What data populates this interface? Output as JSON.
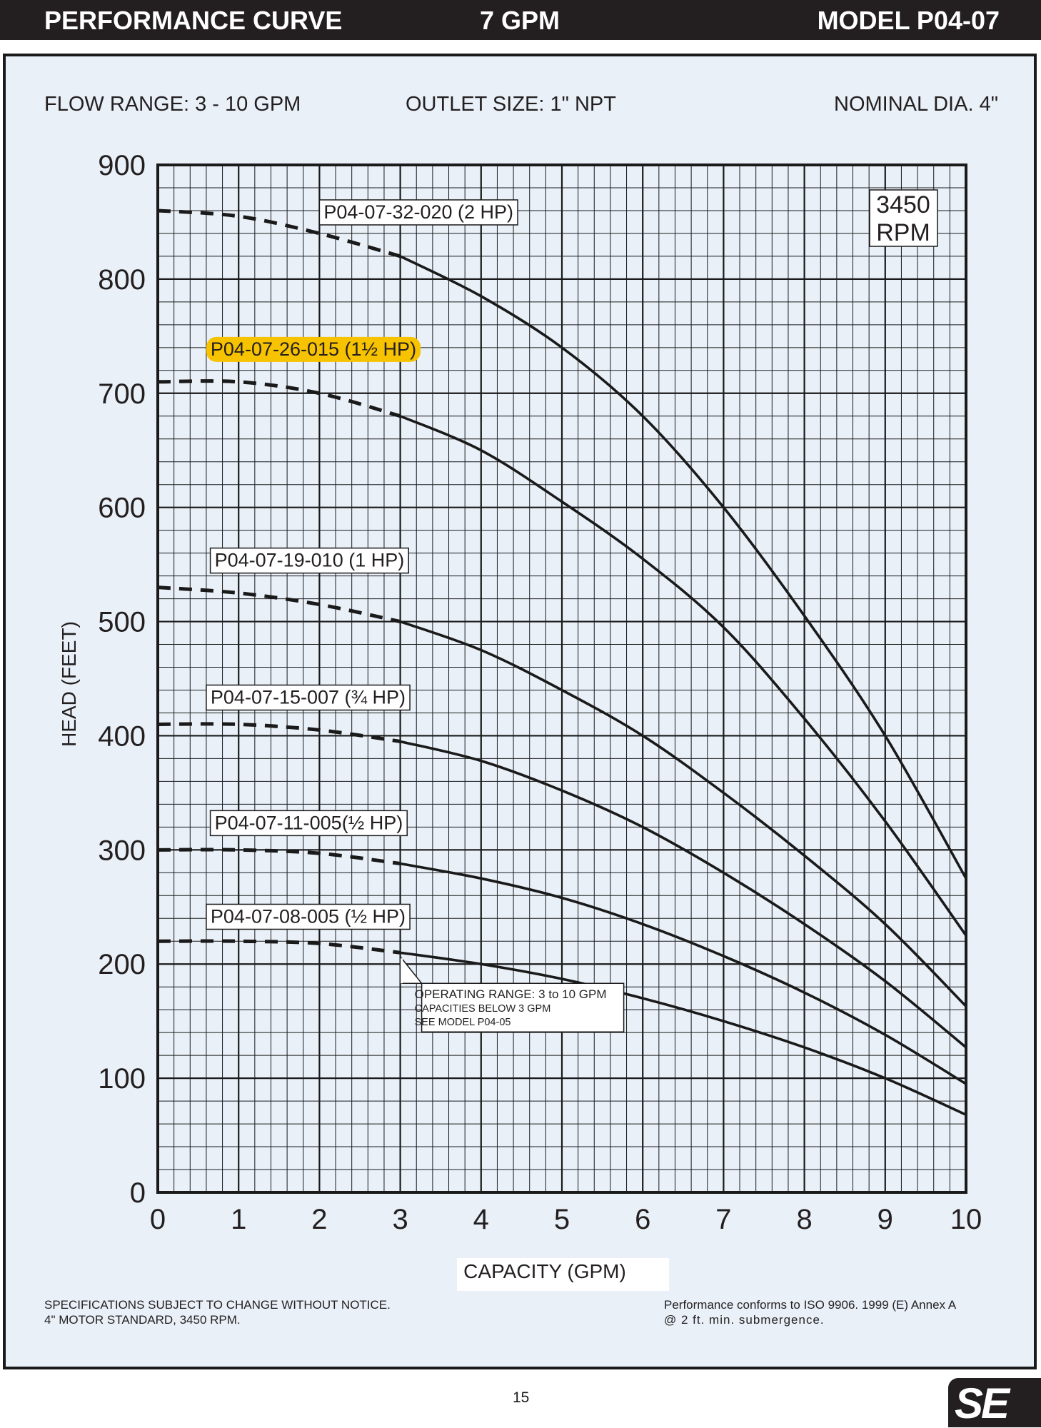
{
  "header": {
    "title": "PERFORMANCE CURVE",
    "flow": "7 GPM",
    "model": "MODEL  P04-07"
  },
  "specs": {
    "flow_range": "FLOW RANGE: 3 - 10 GPM",
    "outlet_size": "OUTLET SIZE: 1\" NPT",
    "nominal_dia": "NOMINAL DIA. 4\""
  },
  "notes": {
    "left_line1": "SPECIFICATIONS SUBJECT TO CHANGE WITHOUT NOTICE.",
    "left_line2": "4\" MOTOR STANDARD, 3450 RPM.",
    "right_line1": "Performance conforms to ISO 9906. 1999 (E) Annex A",
    "right_line2": "@ 2 ft. min. submergence."
  },
  "page_number": "15",
  "logo_text": "SE",
  "colors": {
    "header_bg": "#231f20",
    "panel_bg": "#e9f0f8",
    "highlight": "#f7c200"
  },
  "chart_data": {
    "type": "line",
    "xlabel": "CAPACITY (GPM)",
    "ylabel": "HEAD (FEET)",
    "xlim": [
      0,
      10
    ],
    "ylim": [
      0,
      900
    ],
    "xticks": [
      "0",
      "1",
      "2",
      "3",
      "4",
      "5",
      "6",
      "7",
      "8",
      "9",
      "10"
    ],
    "yticks": [
      "0",
      "100",
      "200",
      "300",
      "400",
      "500",
      "600",
      "700",
      "800",
      "900"
    ],
    "grid": true,
    "rpm_label": [
      "3450",
      "RPM"
    ],
    "annotation": {
      "lines": [
        "OPERATING RANGE: 3 to 10 GPM",
        "CAPACITIES BELOW 3 GPM",
        "SEE MODEL P04-05"
      ],
      "x": 3,
      "y": 210
    },
    "series": [
      {
        "name": "P04-07-32-020 (2 HP)",
        "highlight": false,
        "x": [
          0,
          1,
          2,
          3,
          4,
          5,
          6,
          7,
          8,
          9,
          10
        ],
        "y": [
          860,
          855,
          840,
          820,
          785,
          740,
          680,
          600,
          505,
          400,
          275
        ]
      },
      {
        "name": "P04-07-26-015 (1½ HP)",
        "highlight": true,
        "x": [
          0,
          1,
          2,
          3,
          4,
          5,
          6,
          7,
          8,
          9,
          10
        ],
        "y": [
          710,
          710,
          700,
          680,
          650,
          605,
          555,
          495,
          415,
          325,
          225
        ]
      },
      {
        "name": "P04-07-19-010 (1 HP)",
        "highlight": false,
        "x": [
          0,
          1,
          2,
          3,
          4,
          5,
          6,
          7,
          8,
          9,
          10
        ],
        "y": [
          530,
          525,
          515,
          500,
          475,
          440,
          400,
          350,
          295,
          235,
          163
        ]
      },
      {
        "name": "P04-07-15-007 (¾ HP)",
        "highlight": false,
        "x": [
          0,
          1,
          2,
          3,
          4,
          5,
          6,
          7,
          8,
          9,
          10
        ],
        "y": [
          410,
          410,
          405,
          395,
          378,
          352,
          320,
          280,
          235,
          185,
          127
        ]
      },
      {
        "name": "P04-07-11-005(½ HP)",
        "highlight": false,
        "x": [
          0,
          1,
          2,
          3,
          4,
          5,
          6,
          7,
          8,
          9,
          10
        ],
        "y": [
          300,
          300,
          297,
          288,
          275,
          258,
          235,
          207,
          175,
          138,
          95
        ]
      },
      {
        "name": "P04-07-08-005 (½ HP)",
        "highlight": false,
        "x": [
          0,
          1,
          2,
          3,
          4,
          5,
          6,
          7,
          8,
          9,
          10
        ],
        "y": [
          220,
          220,
          218,
          210,
          200,
          187,
          170,
          150,
          127,
          100,
          68
        ]
      }
    ]
  }
}
